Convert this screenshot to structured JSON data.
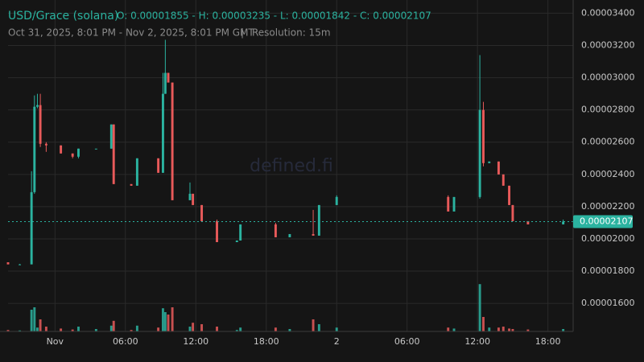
{
  "chart_data": {
    "type": "candlestick",
    "title": "USD/Grace (solana)",
    "ohlc_text": "O: 0.00001855 - H: 0.00003235 - L: 0.00001842 - C: 0.00002107",
    "subtitle": "Oct 31, 2025, 8:01 PM - Nov 2, 2025, 8:01 PM GMT",
    "separator": "|",
    "resolution": "Resolution: 15m",
    "watermark": "defined.fi",
    "up_color": "#2bb3a0",
    "down_color": "#e85a5a",
    "grid": true,
    "x": [
      0.0,
      1.0,
      2.0,
      2.25,
      2.5,
      2.75,
      3.25,
      4.5,
      5.5,
      6.0,
      7.5,
      8.8,
      9.0,
      10.5,
      11.0,
      12.8,
      13.2,
      13.4,
      13.65,
      14.0,
      15.5,
      15.75,
      16.5,
      17.8,
      19.5,
      19.8,
      22.8,
      24.0,
      26.0,
      26.5,
      28.0,
      37.5,
      38.0,
      40.2,
      40.5,
      41.0,
      41.8,
      42.2,
      42.7,
      43.0,
      44.3,
      47.3
    ],
    "open": [
      1.855e-05,
      1.842e-05,
      1.842e-05,
      2.29e-05,
      2.82e-05,
      2.83e-05,
      2.59e-05,
      2.58e-05,
      2.53e-05,
      2.51e-05,
      2.56e-05,
      2.56e-05,
      2.71e-05,
      2.34e-05,
      2.33e-05,
      2.5e-05,
      2.41e-05,
      2.9e-05,
      3.03e-05,
      2.97e-05,
      2.24e-05,
      2.28e-05,
      2.21e-05,
      2.11e-05,
      1.98e-05,
      1.99e-05,
      2.09e-05,
      2.01e-05,
      2.03e-05,
      2.02e-05,
      2.21e-05,
      2.26e-05,
      2.17e-05,
      2.26e-05,
      2.8e-05,
      2.47e-05,
      2.48e-05,
      2.4e-05,
      2.33e-05,
      2.21e-05,
      2.11e-05,
      2.09e-05
    ],
    "high": [
      1.855e-05,
      1.845e-05,
      2.42e-05,
      2.89e-05,
      2.9e-05,
      2.9e-05,
      2.6e-05,
      2.58e-05,
      2.53e-05,
      2.56e-05,
      2.56e-05,
      2.71e-05,
      2.71e-05,
      2.34e-05,
      2.5e-05,
      2.5e-05,
      3.03e-05,
      3.235e-05,
      3.03e-05,
      2.97e-05,
      2.35e-05,
      2.28e-05,
      2.21e-05,
      2.12e-05,
      1.99e-05,
      2.09e-05,
      2.1e-05,
      2.03e-05,
      2.18e-05,
      2.21e-05,
      2.27e-05,
      2.27e-05,
      2.26e-05,
      3.14e-05,
      2.85e-05,
      2.48e-05,
      2.48e-05,
      2.4e-05,
      2.33e-05,
      2.21e-05,
      2.11e-05,
      2.12e-05
    ],
    "low": [
      1.842e-05,
      1.842e-05,
      1.842e-05,
      2.28e-05,
      2.81e-05,
      2.57e-05,
      2.54e-05,
      2.53e-05,
      2.5e-05,
      2.5e-05,
      2.56e-05,
      2.56e-05,
      2.34e-05,
      2.33e-05,
      2.33e-05,
      2.41e-05,
      2.41e-05,
      2.9e-05,
      2.97e-05,
      2.24e-05,
      2.24e-05,
      2.21e-05,
      2.11e-05,
      1.98e-05,
      1.98e-05,
      1.99e-05,
      2.01e-05,
      2.01e-05,
      2.02e-05,
      2.02e-05,
      2.21e-05,
      2.17e-05,
      2.17e-05,
      2.25e-05,
      2.45e-05,
      2.47e-05,
      2.4e-05,
      2.33e-05,
      2.21e-05,
      2.11e-05,
      2.09e-05,
      2.09e-05
    ],
    "close": [
      1.842e-05,
      1.842e-05,
      2.29e-05,
      2.82e-05,
      2.83e-05,
      2.59e-05,
      2.58e-05,
      2.53e-05,
      2.51e-05,
      2.56e-05,
      2.56e-05,
      2.71e-05,
      2.34e-05,
      2.33e-05,
      2.5e-05,
      2.41e-05,
      2.9e-05,
      3.03e-05,
      2.97e-05,
      2.24e-05,
      2.28e-05,
      2.21e-05,
      2.11e-05,
      1.98e-05,
      1.99e-05,
      2.09e-05,
      2.01e-05,
      2.03e-05,
      2.02e-05,
      2.21e-05,
      2.26e-05,
      2.17e-05,
      2.26e-05,
      2.8e-05,
      2.47e-05,
      2.48e-05,
      2.4e-05,
      2.33e-05,
      2.21e-05,
      2.11e-05,
      2.09e-05,
      2.107e-05
    ],
    "volume": [
      3,
      2,
      45,
      50,
      8,
      25,
      10,
      6,
      4,
      10,
      5,
      12,
      22,
      3,
      12,
      8,
      48,
      40,
      35,
      50,
      10,
      18,
      15,
      10,
      3,
      8,
      8,
      5,
      25,
      15,
      8,
      8,
      6,
      98,
      30,
      8,
      8,
      10,
      6,
      5,
      4,
      5
    ],
    "vlim": [
      0,
      100
    ],
    "xlim": [
      0,
      48.15
    ],
    "xticks": [
      {
        "value": 4,
        "label": "Nov"
      },
      {
        "value": 10,
        "label": "06:00"
      },
      {
        "value": 16,
        "label": "12:00"
      },
      {
        "value": 22,
        "label": "18:00"
      },
      {
        "value": 28,
        "label": "2"
      },
      {
        "value": 34,
        "label": "06:00"
      },
      {
        "value": 40,
        "label": "12:00"
      },
      {
        "value": 46,
        "label": "18:00"
      }
    ],
    "ylim": [
      1.426e-05,
      3.482e-05
    ],
    "yticks": [
      {
        "value": 1.6e-05,
        "label": "0.00001600"
      },
      {
        "value": 1.8e-05,
        "label": "0.00001800"
      },
      {
        "value": 2e-05,
        "label": "0.00002000"
      },
      {
        "value": 2.2e-05,
        "label": "0.00002200"
      },
      {
        "value": 2.4e-05,
        "label": "0.00002400"
      },
      {
        "value": 2.6e-05,
        "label": "0.00002600"
      },
      {
        "value": 2.8e-05,
        "label": "0.00002800"
      },
      {
        "value": 3e-05,
        "label": "0.00003000"
      },
      {
        "value": 3.2e-05,
        "label": "0.00003200"
      },
      {
        "value": 3.4e-05,
        "label": "0.00003400"
      }
    ],
    "last_price": {
      "value": 2.107e-05,
      "label": "0.00002107"
    }
  }
}
